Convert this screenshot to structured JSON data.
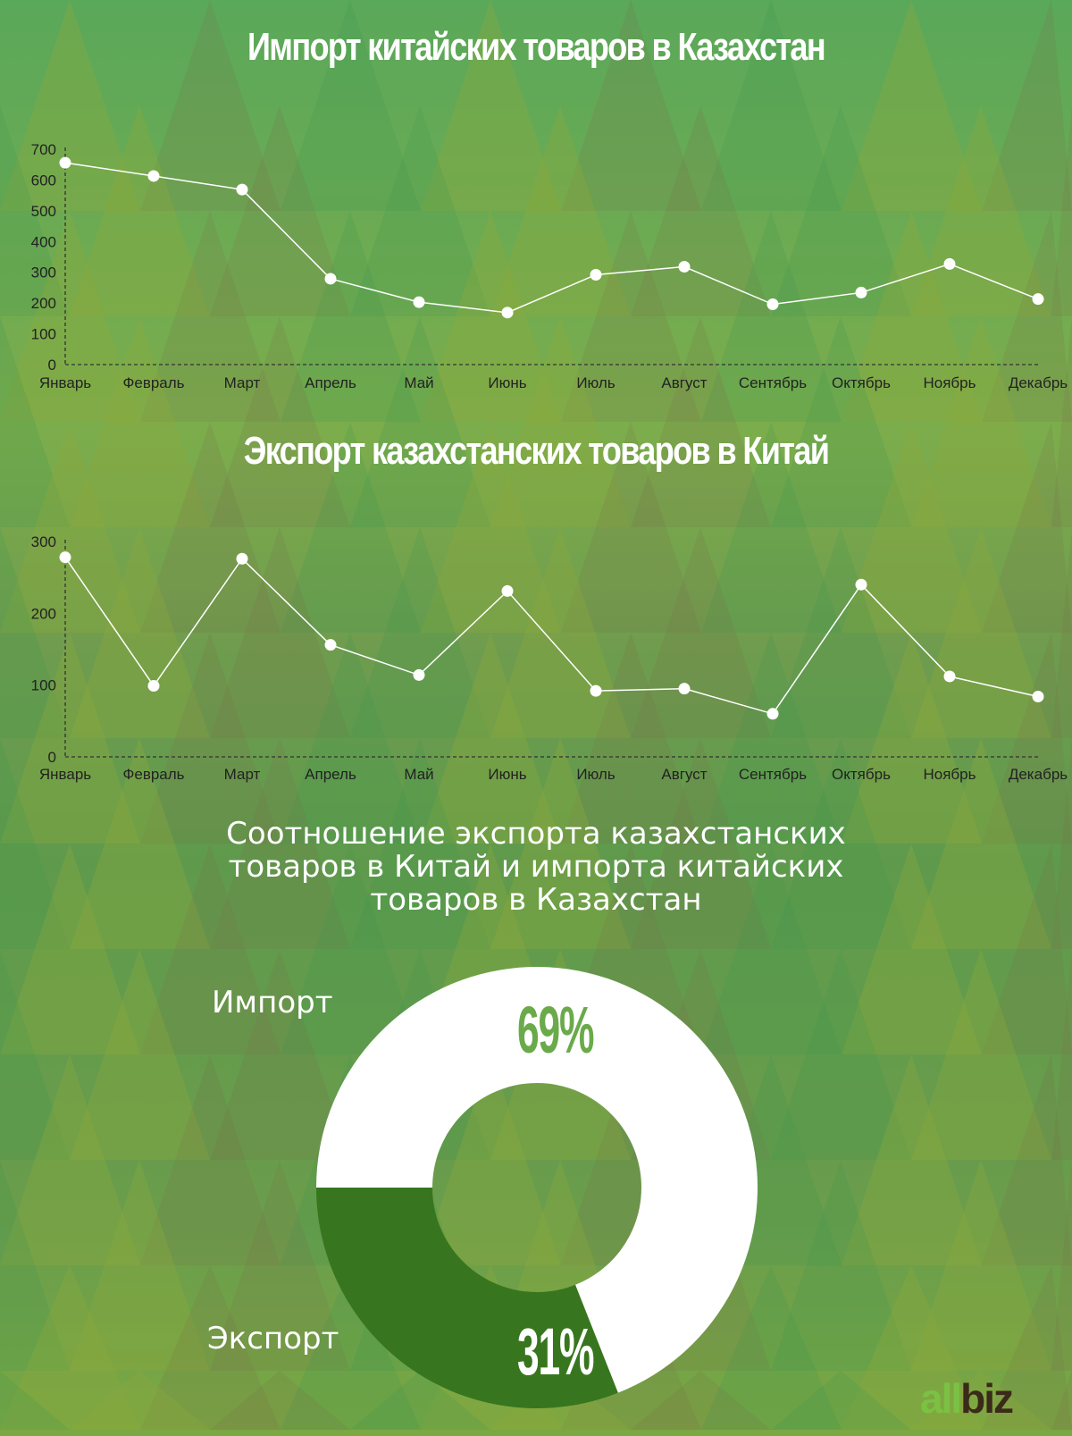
{
  "colors": {
    "line": "#ffffff",
    "export_slice": "#37761e",
    "import_slice": "#ffffff",
    "pct_import": "#6aaa4a",
    "pct_export": "#ffffff",
    "axis": "#333333"
  },
  "chart_data": [
    {
      "type": "line",
      "title": "Импорт китайских товаров в Казахстан",
      "categories": [
        "Январь",
        "Февраль",
        "Март",
        "Апрель",
        "Май",
        "Июнь",
        "Июль",
        "Август",
        "Сентябрь",
        "Октябрь",
        "Ноябрь",
        "Декабрь"
      ],
      "values": [
        656,
        613,
        569,
        279,
        203,
        169,
        292,
        318,
        196,
        234,
        327,
        213
      ],
      "yticks": [
        0,
        100,
        200,
        300,
        400,
        500,
        600,
        700
      ],
      "ylim": [
        0,
        700
      ],
      "grid": false,
      "xlabel": "",
      "ylabel": ""
    },
    {
      "type": "line",
      "title": "Экспорт казахстанских товаров в Китай",
      "categories": [
        "Январь",
        "Февраль",
        "Март",
        "Апрель",
        "Май",
        "Июнь",
        "Июль",
        "Август",
        "Сентябрь",
        "Октябрь",
        "Ноябрь",
        "Декабрь"
      ],
      "values": [
        278,
        99,
        276,
        156,
        114,
        231,
        92,
        95,
        60,
        240,
        112,
        84
      ],
      "yticks": [
        0,
        100,
        200,
        300
      ],
      "ylim": [
        0,
        300
      ],
      "grid": false,
      "xlabel": "",
      "ylabel": ""
    },
    {
      "type": "pie",
      "title": "Соотношение экспорта казахстанских товаров в Китай и импорта китайских товаров в Казахстан",
      "title_lines": [
        "Соотношение экспорта казахстанских",
        "товаров в Китай и импорта китайских",
        "товаров в Казахстан"
      ],
      "slices": [
        {
          "label": "Импорт",
          "value": 69,
          "value_label": "69%"
        },
        {
          "label": "Экспорт",
          "value": 31,
          "value_label": "31%"
        }
      ]
    }
  ],
  "logo": {
    "part1": "all",
    "part2": "biz"
  }
}
